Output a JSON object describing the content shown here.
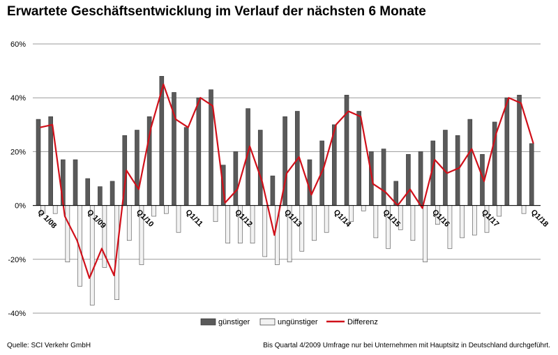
{
  "chart_data": {
    "type": "bar",
    "title": "Erwartete Geschäftsentwicklung im Verlauf der nächsten 6 Monate",
    "xlabel": "",
    "ylabel": "",
    "ylim": [
      -40,
      60
    ],
    "yticks": [
      60,
      40,
      20,
      0,
      -20,
      -40
    ],
    "ytick_labels": [
      "60%",
      "40%",
      "20%",
      "0%",
      "-20%",
      "-40%"
    ],
    "grid": true,
    "legend_position": "bottom",
    "categories": [
      "Q1/08",
      "Q2/08",
      "Q3/08",
      "Q4/08",
      "Q1/09",
      "Q2/09",
      "Q3/09",
      "Q4/09",
      "Q1/10",
      "Q2/10",
      "Q3/10",
      "Q4/10",
      "Q1/11",
      "Q2/11",
      "Q3/11",
      "Q4/11",
      "Q1/12",
      "Q2/12",
      "Q3/12",
      "Q4/12",
      "Q1/13",
      "Q2/13",
      "Q3/13",
      "Q4/13",
      "Q1/14",
      "Q2/14",
      "Q3/14",
      "Q4/14",
      "Q1/15",
      "Q2/15",
      "Q3/15",
      "Q4/15",
      "Q1/16",
      "Q2/16",
      "Q3/16",
      "Q4/16",
      "Q1/17",
      "Q2/17",
      "Q3/17",
      "Q4/17",
      "Q1/18"
    ],
    "tick_labels": [
      {
        "index": 0,
        "label": "Q 1/08"
      },
      {
        "index": 4,
        "label": "Q 1/09"
      },
      {
        "index": 8,
        "label": "Q1/10"
      },
      {
        "index": 12,
        "label": "Q1/11"
      },
      {
        "index": 16,
        "label": "Q1/12"
      },
      {
        "index": 20,
        "label": "Q1/13"
      },
      {
        "index": 24,
        "label": "Q1/14"
      },
      {
        "index": 28,
        "label": "Q1/15"
      },
      {
        "index": 32,
        "label": "Q1/16"
      },
      {
        "index": 36,
        "label": "Q1/17"
      },
      {
        "index": 40,
        "label": "Q1/18"
      }
    ],
    "series": [
      {
        "name": "günstiger",
        "type": "bar",
        "color": "#5a5a5a",
        "values": [
          32,
          33,
          17,
          17,
          10,
          7,
          9,
          26,
          28,
          33,
          48,
          42,
          29,
          40,
          43,
          15,
          20,
          36,
          28,
          11,
          33,
          35,
          17,
          24,
          30,
          41,
          35,
          20,
          21,
          9,
          19,
          20,
          24,
          28,
          26,
          32,
          19,
          31,
          40,
          41,
          23
        ]
      },
      {
        "name": "ungünstiger",
        "type": "bar",
        "color": "#f2f2f2",
        "values": [
          -3,
          -3,
          -21,
          -30,
          -37,
          -23,
          -35,
          -13,
          -22,
          -4,
          -3,
          -10,
          0,
          0,
          -6,
          -14,
          -14,
          -14,
          -19,
          -22,
          -21,
          -17,
          -13,
          -10,
          0,
          -6,
          -2,
          -12,
          -16,
          -9,
          -13,
          -21,
          -7,
          -16,
          -12,
          -11,
          -10,
          -4,
          0,
          -3,
          0
        ]
      },
      {
        "name": "Differenz",
        "type": "line",
        "color": "#d0101a",
        "values": [
          29,
          30,
          -4,
          -13,
          -27,
          -16,
          -26,
          13,
          6,
          29,
          45,
          32,
          29,
          40,
          37,
          1,
          6,
          22,
          9,
          -11,
          12,
          18,
          4,
          14,
          30,
          35,
          33,
          8,
          5,
          0,
          6,
          -1,
          17,
          12,
          14,
          21,
          9,
          27,
          40,
          38,
          23
        ]
      }
    ],
    "legend": [
      "günstiger",
      "ungünstiger",
      "Differenz"
    ],
    "source_note": "Quelle: SCI Verkehr GmbH",
    "footnote": "Bis Quartal 4/2009 Umfrage nur bei Unternehmen mit Hauptsitz in Deutschland durchgeführt."
  }
}
